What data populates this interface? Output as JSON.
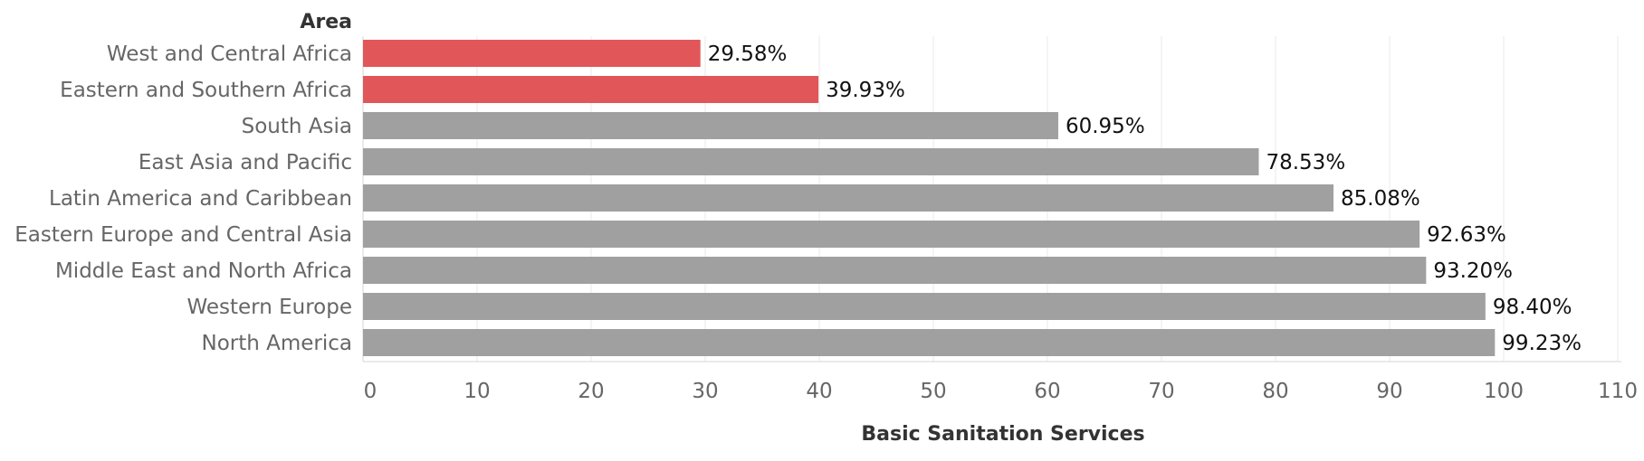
{
  "chart_data": {
    "type": "bar",
    "orientation": "horizontal",
    "row_header": "Area",
    "xlabel": "Basic Sanitation Services",
    "categories": [
      "West and Central Africa",
      "Eastern and Southern Africa",
      "South Asia",
      "East Asia and Pacific",
      "Latin America and Caribbean",
      "Eastern Europe and Central Asia",
      "Middle East and North Africa",
      "Western Europe",
      "North America"
    ],
    "values": [
      29.58,
      39.93,
      60.95,
      78.53,
      85.08,
      92.63,
      93.2,
      98.4,
      99.23
    ],
    "value_labels": [
      "29.58%",
      "39.93%",
      "60.95%",
      "78.53%",
      "85.08%",
      "92.63%",
      "93.20%",
      "98.40%",
      "99.23%"
    ],
    "bar_colors": [
      "#e15759",
      "#e15759",
      "#a0a0a0",
      "#a0a0a0",
      "#a0a0a0",
      "#a0a0a0",
      "#a0a0a0",
      "#a0a0a0",
      "#a0a0a0"
    ],
    "xlim": [
      0,
      110
    ],
    "xticks": [
      0,
      10,
      20,
      30,
      40,
      50,
      60,
      70,
      80,
      90,
      100,
      110
    ],
    "grid": true,
    "legend": "none"
  }
}
